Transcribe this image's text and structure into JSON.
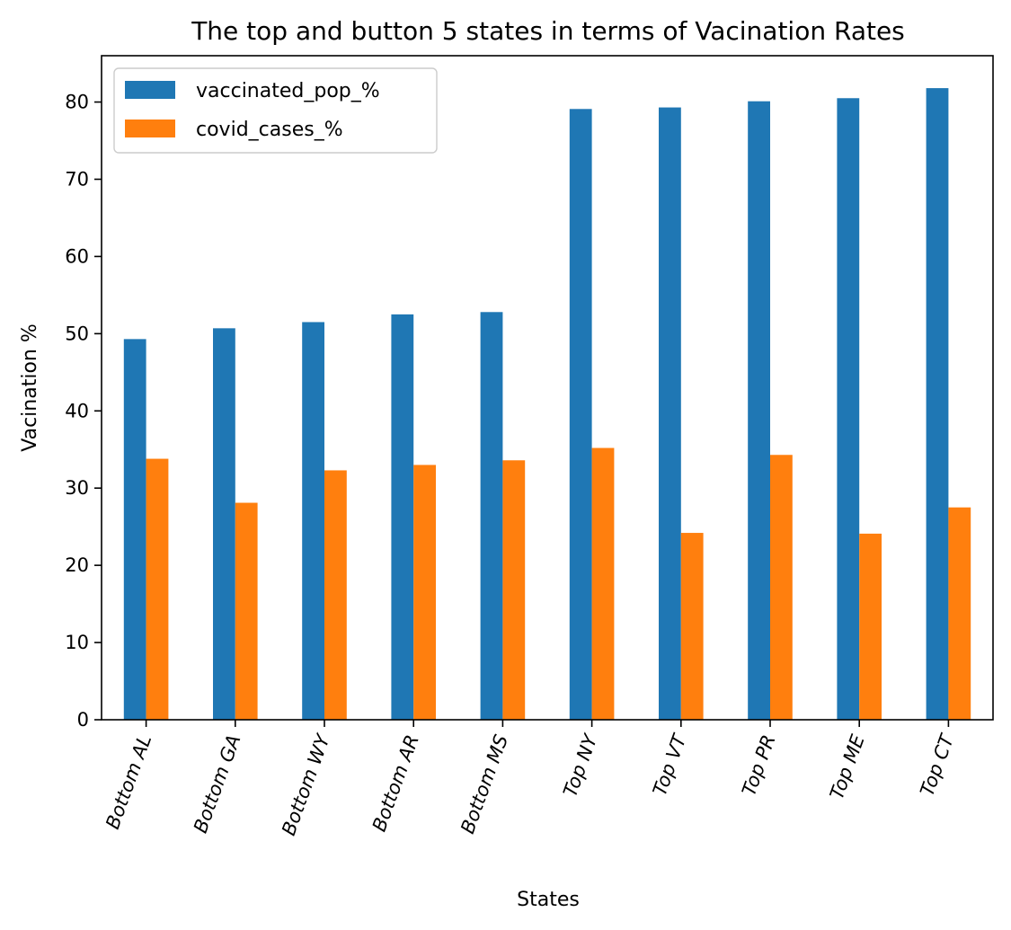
{
  "chart_data": {
    "type": "bar",
    "title": "The top and button 5 states in terms of Vacination Rates",
    "xlabel": "States",
    "ylabel": "Vacination %",
    "categories": [
      "Bottom AL",
      "Bottom GA",
      "Bottom WY",
      "Bottom AR",
      "Bottom MS",
      "Top NY",
      "Top VT",
      "Top PR",
      "Top ME",
      "Top CT"
    ],
    "series": [
      {
        "name": "vaccinated_pop_%",
        "color": "#1f77b4",
        "values": [
          49.3,
          50.7,
          51.5,
          52.5,
          52.8,
          79.1,
          79.3,
          80.1,
          80.5,
          81.8
        ]
      },
      {
        "name": "covid_cases_%",
        "color": "#ff7f0e",
        "values": [
          33.8,
          28.1,
          32.3,
          33.0,
          33.6,
          35.2,
          24.2,
          34.3,
          24.1,
          27.5
        ]
      }
    ],
    "ylim": [
      0,
      86
    ],
    "yticks": [
      0,
      10,
      20,
      30,
      40,
      50,
      60,
      70,
      80
    ],
    "grid": false,
    "legend_position": "top-left"
  }
}
